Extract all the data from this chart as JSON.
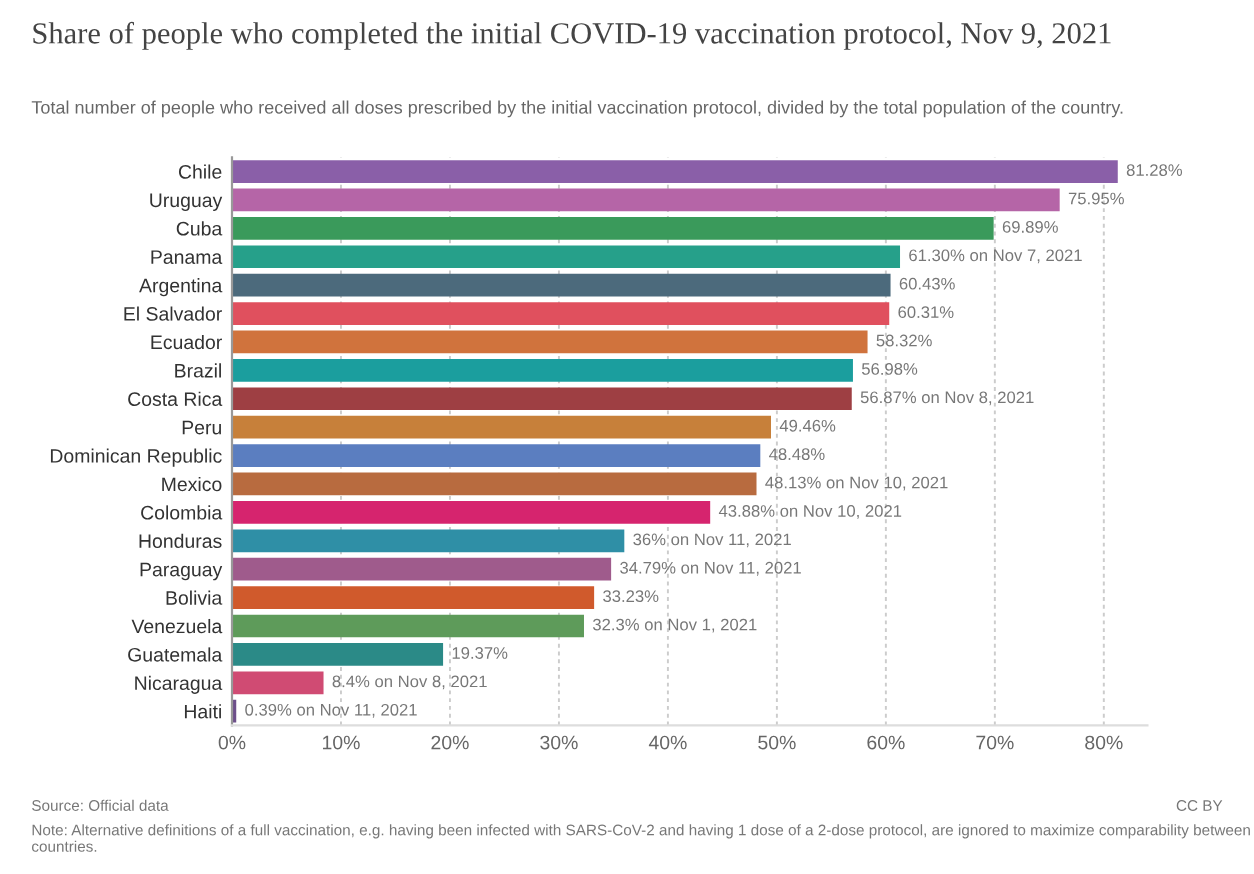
{
  "chart_data": {
    "type": "bar",
    "orientation": "horizontal",
    "title": "Share of people who completed the initial COVID-19 vaccination protocol, Nov 9, 2021",
    "subtitle": "Total number of people who received all doses prescribed by the initial vaccination protocol, divided by the total population of the country.",
    "categories": [
      "Chile",
      "Uruguay",
      "Cuba",
      "Panama",
      "Argentina",
      "El Salvador",
      "Ecuador",
      "Brazil",
      "Costa Rica",
      "Peru",
      "Dominican Republic",
      "Mexico",
      "Colombia",
      "Honduras",
      "Paraguay",
      "Bolivia",
      "Venezuela",
      "Guatemala",
      "Nicaragua",
      "Haiti"
    ],
    "values": [
      81.28,
      75.95,
      69.89,
      61.3,
      60.43,
      60.31,
      58.32,
      56.98,
      56.87,
      49.46,
      48.48,
      48.13,
      43.88,
      36,
      34.79,
      33.23,
      32.3,
      19.37,
      8.4,
      0.39
    ],
    "value_labels": [
      "81.28%",
      "75.95%",
      "69.89%",
      "61.30% on Nov 7, 2021",
      "60.43%",
      "60.31%",
      "58.32%",
      "56.98%",
      "56.87% on Nov 8, 2021",
      "49.46%",
      "48.48%",
      "48.13% on Nov 10, 2021",
      "43.88% on Nov 10, 2021",
      "36% on Nov 11, 2021",
      "34.79% on Nov 11, 2021",
      "33.23%",
      "32.3% on Nov 1, 2021",
      "19.37%",
      "8.4% on Nov 8, 2021",
      "0.39% on Nov 11, 2021"
    ],
    "colors": [
      "#8a5fa8",
      "#b565a7",
      "#3a9a5b",
      "#26a08a",
      "#4c6a7c",
      "#e0505e",
      "#d0733d",
      "#1b9e9e",
      "#9e3f43",
      "#c7803a",
      "#5b7ec0",
      "#b86b3f",
      "#d6246e",
      "#2f8fa6",
      "#9f5b8c",
      "#d05a2c",
      "#5e9b5a",
      "#2b8a87",
      "#d04b73",
      "#6d4f8a"
    ],
    "xlim": [
      0,
      84
    ],
    "xticks": [
      {
        "value": 0,
        "label": "0%"
      },
      {
        "value": 10,
        "label": "10%"
      },
      {
        "value": 20,
        "label": "20%"
      },
      {
        "value": 30,
        "label": "30%"
      },
      {
        "value": 40,
        "label": "40%"
      },
      {
        "value": 50,
        "label": "50%"
      },
      {
        "value": 60,
        "label": "60%"
      },
      {
        "value": 70,
        "label": "70%"
      },
      {
        "value": 80,
        "label": "80%"
      }
    ],
    "grid": "x",
    "annotations": [
      "Source: Official data",
      "Note: Alternative definitions of a full vaccination, e.g. having been infected with SARS-CoV-2 and having 1 dose of a 2-dose protocol, are ignored to maximize comparability between countries.",
      "CC BY"
    ]
  }
}
